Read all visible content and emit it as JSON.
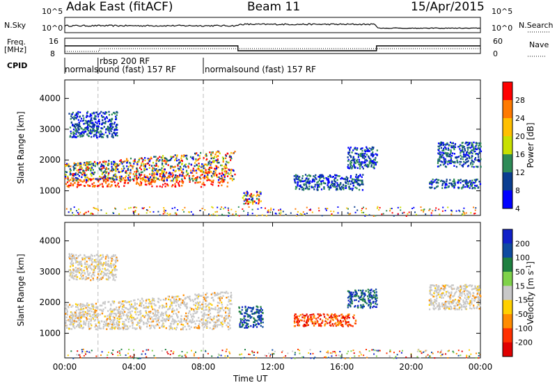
{
  "header": {
    "station": "Adak East (fitACF)",
    "beam": "Beam 11",
    "date": "15/Apr/2015"
  },
  "top_panels": {
    "nsky_label": "N.Sky",
    "nsky_ticks": [
      "10^5",
      "10^0"
    ],
    "nsearch_label": "N.Search",
    "nsearch_ticks": [
      "10^5",
      "10^0"
    ],
    "freq_label_1": "Freq.",
    "freq_label_2": "[MHz]",
    "freq_ticks": [
      "16",
      "8"
    ],
    "nave_label": "Nave",
    "nave_ticks": [
      "60",
      "0"
    ],
    "cpid_label": "CPID",
    "cpid_segments": [
      {
        "start": 0.0,
        "text": "normalsound (fast) 157 RF"
      },
      {
        "start": 1.92,
        "text": "rbsp 200 RF"
      },
      {
        "start": 8.0,
        "text": "normalsound (fast) 157 RF"
      }
    ]
  },
  "chart_data": [
    {
      "type": "heatmap",
      "name": "power",
      "xlabel": "",
      "ylabel": "Slant Range [km]",
      "xlim": [
        0,
        24
      ],
      "ylim": [
        200,
        4600
      ],
      "yticks": [
        1000,
        2000,
        3000,
        4000
      ],
      "colorbar": {
        "label": "Power [dB]",
        "ticks": [
          "28",
          "24",
          "20",
          "16",
          "12",
          "8",
          "4"
        ],
        "colors": [
          "#ff0000",
          "#ff7a00",
          "#ffc000",
          "#c8e000",
          "#2e8b57",
          "#0a3d91",
          "#0000ff"
        ]
      },
      "features": [
        {
          "t": [
            0.0,
            9.6
          ],
          "range": [
            1150,
            1350
          ],
          "level": "high"
        },
        {
          "t": [
            0.0,
            9.8
          ],
          "range": [
            1350,
            1900
          ],
          "level": "medium"
        },
        {
          "t": [
            0.2,
            3.0
          ],
          "range": [
            2750,
            3600
          ],
          "level": "low"
        },
        {
          "t": [
            10.2,
            11.3
          ],
          "range": [
            600,
            1000
          ],
          "level": "medium"
        },
        {
          "t": [
            13.2,
            17.2
          ],
          "range": [
            1050,
            1550
          ],
          "level": "low"
        },
        {
          "t": [
            16.3,
            18.0
          ],
          "range": [
            1750,
            2450
          ],
          "level": "low"
        },
        {
          "t": [
            21.0,
            24.0
          ],
          "range": [
            1100,
            1400
          ],
          "level": "low"
        },
        {
          "t": [
            21.5,
            24.0
          ],
          "range": [
            1800,
            2600
          ],
          "level": "low"
        }
      ]
    },
    {
      "type": "heatmap",
      "name": "velocity",
      "xlabel": "Time UT",
      "ylabel": "Slant Range [km]",
      "xlim": [
        0,
        24
      ],
      "ylim": [
        200,
        4600
      ],
      "yticks": [
        1000,
        2000,
        3000,
        4000
      ],
      "xticks": [
        "00:00",
        "04:00",
        "08:00",
        "12:00",
        "16:00",
        "20:00",
        "00:00"
      ],
      "colorbar": {
        "label": "Velocity [m s",
        "label_sup": "-1",
        "label_end": "]",
        "ticks": [
          "200",
          "100",
          "50",
          "15",
          "-15",
          "-50",
          "-100",
          "-200"
        ],
        "colors": [
          "#1020c8",
          "#0e4aa0",
          "#1e8040",
          "#7fd24a",
          "#c8c8c8",
          "#ffd000",
          "#ff8c00",
          "#ff3000",
          "#e00000"
        ]
      },
      "features": [
        {
          "t": [
            0.0,
            9.6
          ],
          "range": [
            1150,
            1950
          ],
          "level": "near-zero"
        },
        {
          "t": [
            0.2,
            3.0
          ],
          "range": [
            2750,
            3600
          ],
          "level": "near-zero"
        },
        {
          "t": [
            10.0,
            11.4
          ],
          "range": [
            1200,
            1900
          ],
          "level": "positive"
        },
        {
          "t": [
            13.2,
            16.8
          ],
          "range": [
            1250,
            1650
          ],
          "level": "negative"
        },
        {
          "t": [
            16.3,
            18.0
          ],
          "range": [
            1850,
            2450
          ],
          "level": "positive"
        },
        {
          "t": [
            21.0,
            24.0
          ],
          "range": [
            1800,
            2600
          ],
          "level": "near-zero"
        }
      ]
    }
  ]
}
